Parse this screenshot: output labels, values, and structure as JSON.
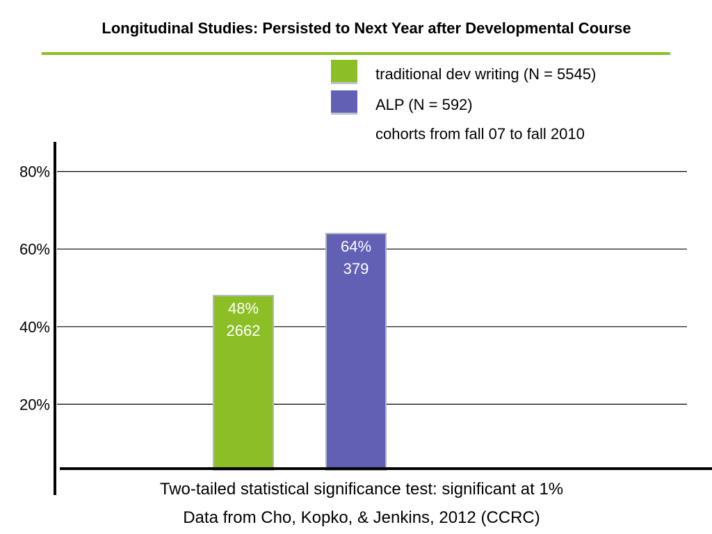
{
  "slide": {
    "title": "Longitudinal Studies: Persisted to Next Year after Developmental Course",
    "note": "cohorts from fall 07 to fall 2010",
    "footer_line1": "Two-tailed statistical significance test: significant at 1%",
    "footer_line2": "Data from Cho, Kopko, & Jenkins, 2012 (CCRC)"
  },
  "chart_data": {
    "type": "bar",
    "categories": [
      "",
      ""
    ],
    "series": [
      {
        "name": "traditional dev writing (N = 5545)",
        "color": "#8cbf26",
        "value": 48,
        "labels": [
          "48%",
          "2662"
        ]
      },
      {
        "name": "ALP (N = 592)",
        "color": "#6260b4",
        "value": 64,
        "labels": [
          "64%",
          "379"
        ]
      }
    ],
    "y_ticks": [
      20,
      40,
      60,
      80
    ],
    "y_tick_labels": [
      "20%",
      "40%",
      "60%",
      "80%"
    ],
    "ylim": [
      0,
      88
    ],
    "grid": true,
    "legend_position": "top-right"
  }
}
